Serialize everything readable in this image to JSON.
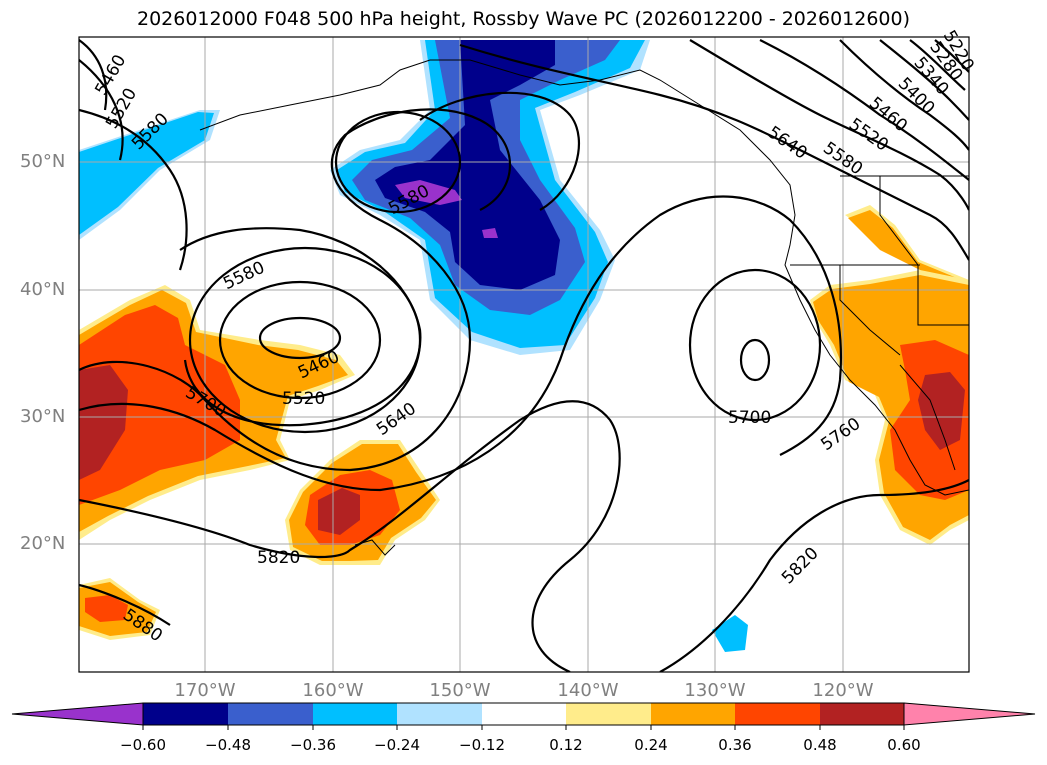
{
  "title": "2026012000 F048 500 hPa height, Rossby Wave PC (2026012200 - 2026012600)",
  "lat_labels": [
    "50°N",
    "40°N",
    "30°N",
    "20°N"
  ],
  "lon_labels": [
    "170°W",
    "160°W",
    "150°W",
    "140°W",
    "130°W",
    "120°W"
  ],
  "contour_labels": [
    "5460",
    "5520",
    "5580",
    "5580",
    "5580",
    "5460",
    "5520",
    "5640",
    "5700",
    "5820",
    "5880",
    "5700",
    "5760",
    "5820",
    "5640",
    "5580",
    "5520",
    "5460",
    "5400",
    "5340",
    "5280",
    "5220"
  ],
  "colorbar": {
    "ticks": [
      "−0.60",
      "−0.48",
      "−0.36",
      "−0.24",
      "−0.12",
      "0.12",
      "0.24",
      "0.36",
      "0.48",
      "0.60"
    ],
    "colors": [
      "#9932cc",
      "#00008b",
      "#3a5fcd",
      "#00bfff",
      "#b0e2ff",
      "#ffffff",
      "#ffec8b",
      "#ffa500",
      "#ff4500",
      "#b22222",
      "#ff82ab"
    ]
  },
  "colors": {
    "grid": "#aaaaaa",
    "contour": "#000000",
    "tick_label": "#808080"
  }
}
